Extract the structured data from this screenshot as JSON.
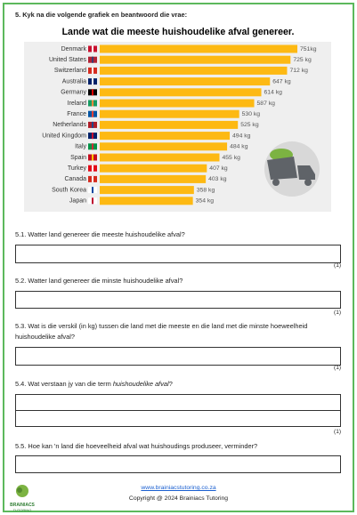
{
  "header": {
    "question": "5. Kyk na die volgende grafiek en beantwoord die vrae:"
  },
  "chart_data": {
    "type": "bar",
    "orientation": "horizontal",
    "title": "Lande wat die meeste huishoudelike afval genereer.",
    "categories": [
      "Denmark",
      "United States",
      "Switzerland",
      "Australia",
      "Germany",
      "Ireland",
      "France",
      "Netherlands",
      "United Kingdom",
      "Italy",
      "Spain",
      "Turkey",
      "Canada",
      "South Korea",
      "Japan"
    ],
    "values": [
      751,
      725,
      712,
      647,
      614,
      587,
      530,
      525,
      494,
      484,
      455,
      407,
      403,
      358,
      354
    ],
    "value_labels": [
      "751kg",
      "725 kg",
      "712 kg",
      "647 kg",
      "614 kg",
      "587 kg",
      "530 kg",
      "525 kg",
      "494 kg",
      "484 kg",
      "455 kg",
      "407 kg",
      "403 kg",
      "358 kg",
      "354 kg"
    ],
    "color": "#fdb913"
  },
  "questions": [
    {
      "text": "5.1. Watter land genereer die meeste huishoudelike afval?",
      "marks": "(1)"
    },
    {
      "text": "5.2. Watter land genereer die minste huishoudelike afval?",
      "marks": "(1)"
    },
    {
      "text": "5.3. Wat is die verskil (in kg) tussen die land met die meeste en die land met die minste hoeweelheid huishoudelike afval?",
      "marks": "(1)"
    },
    {
      "text": "5.4. Wat verstaan jy van die term ",
      "emphasis": "huishoudelike afval",
      "end": "?",
      "marks": "(1)"
    },
    {
      "text": "5.5. Hoe kan 'n land die hoeveelheid afval wat huishoudings produseer, verminder?"
    }
  ],
  "footer": {
    "website": "www.brainiacstutoring.co.za",
    "copyright": "Copyright @ 2024 Brainiacs Tutoring",
    "logo": "BRAINIACS",
    "logo_sub": "TUTORING"
  }
}
